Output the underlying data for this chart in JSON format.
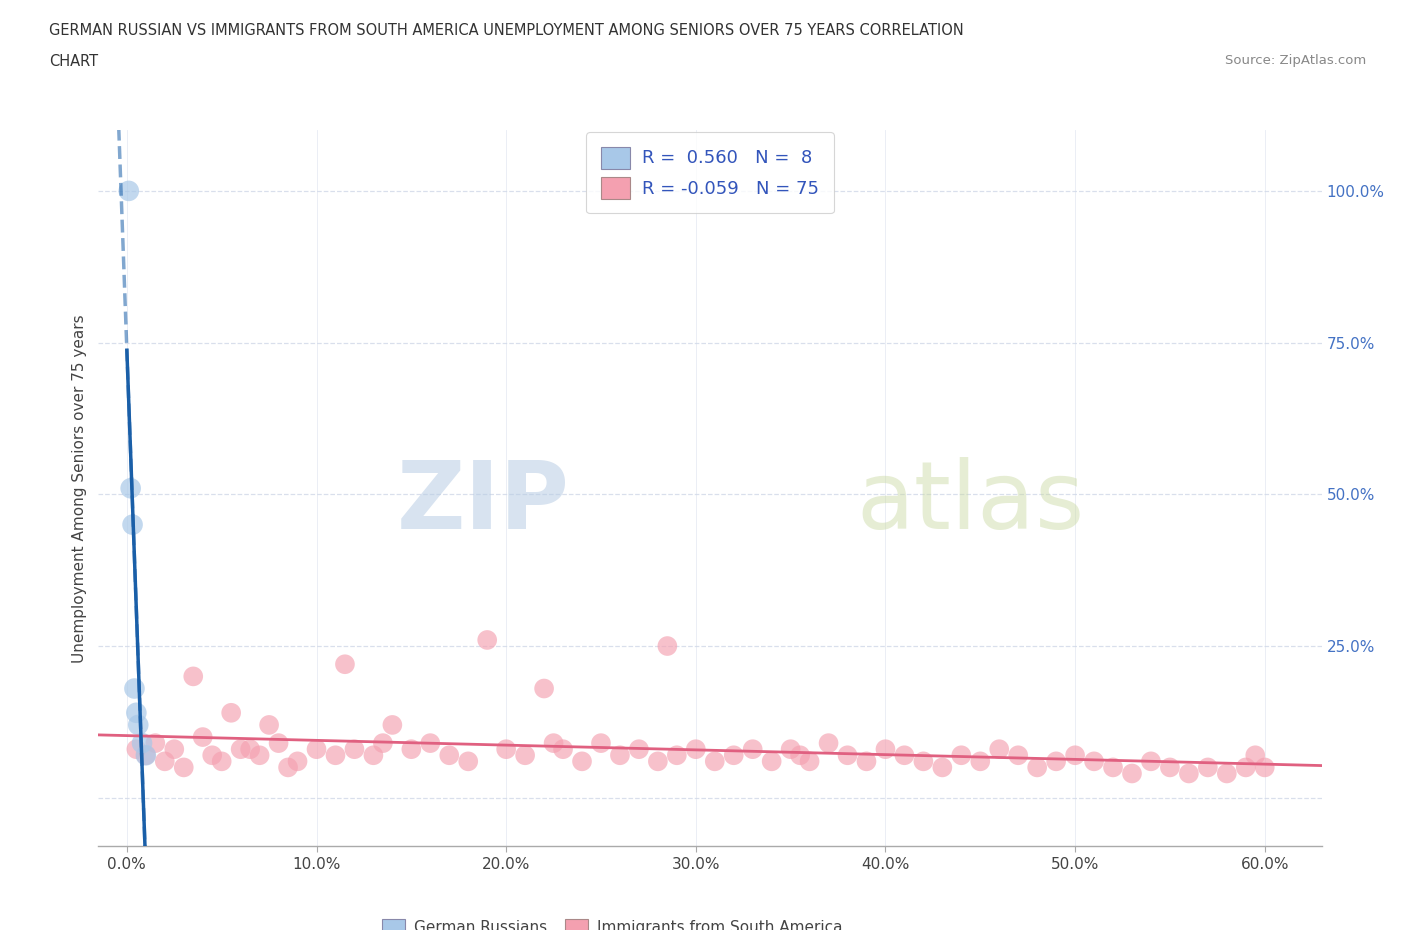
{
  "title_line1": "GERMAN RUSSIAN VS IMMIGRANTS FROM SOUTH AMERICA UNEMPLOYMENT AMONG SENIORS OVER 75 YEARS CORRELATION",
  "title_line2": "CHART",
  "source": "Source: ZipAtlas.com",
  "ylabel": "Unemployment Among Seniors over 75 years",
  "x_tick_labels": [
    "0.0%",
    "10.0%",
    "20.0%",
    "30.0%",
    "40.0%",
    "50.0%",
    "60.0%"
  ],
  "x_tick_vals": [
    0.0,
    10.0,
    20.0,
    30.0,
    40.0,
    50.0,
    60.0
  ],
  "y_tick_labels": [
    "100.0%",
    "75.0%",
    "50.0%",
    "25.0%",
    ""
  ],
  "y_tick_vals": [
    100.0,
    75.0,
    50.0,
    25.0,
    0.0
  ],
  "blue_scatter_color": "#a8c8e8",
  "blue_line_color": "#1a5fa8",
  "pink_scatter_color": "#f4a0b0",
  "pink_line_color": "#e06080",
  "grid_color": "#d0d8e8",
  "grid_style": "--",
  "blue_scatter_x": [
    0.1,
    0.2,
    0.3,
    0.4,
    0.5,
    0.6,
    0.8,
    1.0
  ],
  "blue_scatter_y": [
    100.0,
    51.0,
    45.0,
    18.0,
    14.0,
    12.0,
    9.0,
    7.0
  ],
  "pink_scatter_x": [
    0.5,
    1.0,
    1.5,
    2.0,
    2.5,
    3.0,
    4.0,
    4.5,
    5.0,
    6.0,
    7.0,
    8.0,
    9.0,
    10.0,
    11.0,
    11.5,
    12.0,
    13.0,
    13.5,
    14.0,
    15.0,
    16.0,
    17.0,
    18.0,
    19.0,
    20.0,
    21.0,
    22.0,
    22.5,
    23.0,
    24.0,
    25.0,
    26.0,
    27.0,
    28.0,
    28.5,
    29.0,
    30.0,
    31.0,
    32.0,
    33.0,
    34.0,
    35.0,
    35.5,
    36.0,
    37.0,
    38.0,
    39.0,
    40.0,
    41.0,
    42.0,
    43.0,
    44.0,
    45.0,
    46.0,
    47.0,
    48.0,
    49.0,
    50.0,
    51.0,
    52.0,
    53.0,
    54.0,
    55.0,
    56.0,
    57.0,
    58.0,
    59.0,
    59.5,
    60.0,
    3.5,
    5.5,
    6.5,
    7.5,
    8.5
  ],
  "pink_scatter_y": [
    8.0,
    7.0,
    9.0,
    6.0,
    8.0,
    5.0,
    10.0,
    7.0,
    6.0,
    8.0,
    7.0,
    9.0,
    6.0,
    8.0,
    7.0,
    22.0,
    8.0,
    7.0,
    9.0,
    12.0,
    8.0,
    9.0,
    7.0,
    6.0,
    26.0,
    8.0,
    7.0,
    18.0,
    9.0,
    8.0,
    6.0,
    9.0,
    7.0,
    8.0,
    6.0,
    25.0,
    7.0,
    8.0,
    6.0,
    7.0,
    8.0,
    6.0,
    8.0,
    7.0,
    6.0,
    9.0,
    7.0,
    6.0,
    8.0,
    7.0,
    6.0,
    5.0,
    7.0,
    6.0,
    8.0,
    7.0,
    5.0,
    6.0,
    7.0,
    6.0,
    5.0,
    4.0,
    6.0,
    5.0,
    4.0,
    5.0,
    4.0,
    5.0,
    7.0,
    5.0,
    20.0,
    14.0,
    8.0,
    12.0,
    5.0
  ],
  "xlim": [
    -1.5,
    63.0
  ],
  "ylim": [
    -8.0,
    110.0
  ],
  "watermark_zip": "ZIP",
  "watermark_atlas": "atlas",
  "label_german": "German Russians",
  "label_south": "Immigrants from South America",
  "legend_blue": "R =  0.560   N =  8",
  "legend_pink": "R = -0.059   N = 75"
}
